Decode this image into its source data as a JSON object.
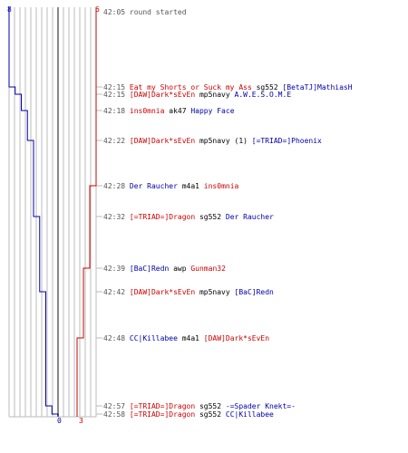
{
  "colors": {
    "red_team": "#cc0000",
    "blue_team": "#0000aa",
    "grid": "#bbbbbb",
    "center": "#888888",
    "time": "#555555"
  },
  "score": {
    "blue_start": "8",
    "red_start": "6",
    "blue_end": "0",
    "red_end": "3"
  },
  "events": [
    {
      "time": "42:05",
      "text": "round started",
      "type": "system"
    },
    {
      "time": "42:15",
      "killer": "Eat my Shorts or Suck my Ass",
      "killer_team": "red",
      "weapon": "sg552",
      "victim": "[BetaTJ]MathiasH",
      "victim_team": "blue"
    },
    {
      "time": "42:15",
      "killer": "[DAW]Dark*sEvEn",
      "killer_team": "red",
      "weapon": "mp5navy",
      "victim": "A.W.E.S.O.M.E",
      "victim_team": "blue"
    },
    {
      "time": "42:18",
      "killer": "ins0mnia",
      "killer_team": "red",
      "weapon": "ak47",
      "victim": "Happy Face",
      "victim_team": "blue"
    },
    {
      "time": "42:22",
      "killer": "[DAW]Dark*sEvEn",
      "killer_team": "red",
      "weapon": "mp5navy (1)",
      "victim": "[=TRIAD=]Phoenix",
      "victim_team": "blue"
    },
    {
      "time": "42:28",
      "killer": "Der Raucher",
      "killer_team": "blue",
      "weapon": "m4a1",
      "victim": "ins0mnia",
      "victim_team": "red"
    },
    {
      "time": "42:32",
      "killer": "[=TRIAD=]Dragon",
      "killer_team": "red",
      "weapon": "sg552",
      "victim": "Der Raucher",
      "victim_team": "blue"
    },
    {
      "time": "42:39",
      "killer": "[BaC]Redn",
      "killer_team": "blue",
      "weapon": "awp",
      "victim": "Gunman32",
      "victim_team": "red"
    },
    {
      "time": "42:42",
      "killer": "[DAW]Dark*sEvEn",
      "killer_team": "red",
      "weapon": "mp5navy",
      "victim": "[BaC]Redn",
      "victim_team": "blue"
    },
    {
      "time": "42:48",
      "killer": "CC|Killabee",
      "killer_team": "blue",
      "weapon": "m4a1",
      "victim": "[DAW]Dark*sEvEn",
      "victim_team": "red"
    },
    {
      "time": "42:57",
      "killer": "[=TRIAD=]Dragon",
      "killer_team": "red",
      "weapon": "sg552",
      "victim": "-=Spader Knekt=-",
      "victim_team": "blue"
    },
    {
      "time": "42:58",
      "killer": "[=TRIAD=]Dragon",
      "killer_team": "red",
      "weapon": "sg552",
      "victim": "CC|Killabee",
      "victim_team": "blue"
    }
  ]
}
